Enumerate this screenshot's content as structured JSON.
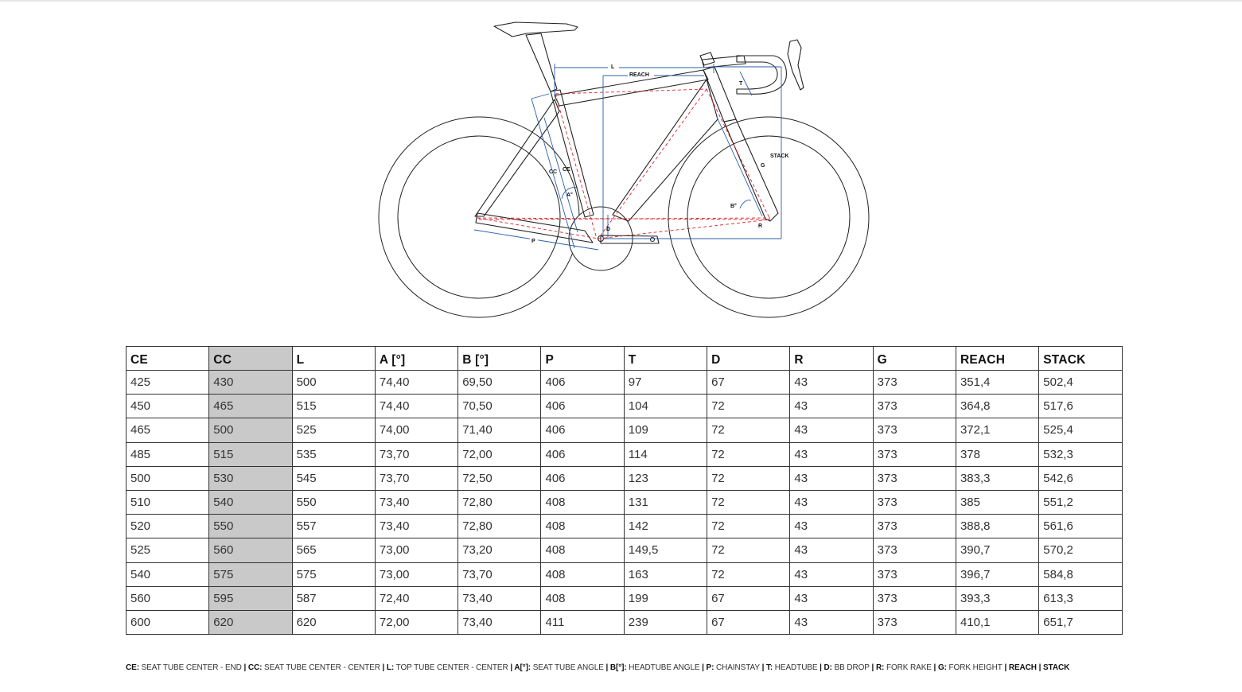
{
  "diagram": {
    "labels": {
      "l": "L",
      "reach": "REACH",
      "t": "T",
      "stack": "STACK",
      "g": "G",
      "cc": "CC",
      "ce": "CE",
      "a": "A°",
      "b": "B°",
      "d": "D",
      "r": "R",
      "p": "P"
    },
    "colors": {
      "frame": "#222222",
      "dimension": "#2b5faa",
      "centerline": "#d9252b"
    }
  },
  "table": {
    "headers": [
      "CE",
      "CC",
      "L",
      "A [°]",
      "B [°]",
      "P",
      "T",
      "D",
      "R",
      "G",
      "REACH",
      "STACK"
    ],
    "highlight_color": "#c9c9c9",
    "rows": [
      [
        "425",
        "430",
        "500",
        "74,40",
        "69,50",
        "406",
        "97",
        "67",
        "43",
        "373",
        "351,4",
        "502,4"
      ],
      [
        "450",
        "465",
        "515",
        "74,40",
        "70,50",
        "406",
        "104",
        "72",
        "43",
        "373",
        "364,8",
        "517,6"
      ],
      [
        "465",
        "500",
        "525",
        "74,00",
        "71,40",
        "406",
        "109",
        "72",
        "43",
        "373",
        "372,1",
        "525,4"
      ],
      [
        "485",
        "515",
        "535",
        "73,70",
        "72,00",
        "406",
        "114",
        "72",
        "43",
        "373",
        "378",
        "532,3"
      ],
      [
        "500",
        "530",
        "545",
        "73,70",
        "72,50",
        "406",
        "123",
        "72",
        "43",
        "373",
        "383,3",
        "542,6"
      ],
      [
        "510",
        "540",
        "550",
        "73,40",
        "72,80",
        "408",
        "131",
        "72",
        "43",
        "373",
        "385",
        "551,2"
      ],
      [
        "520",
        "550",
        "557",
        "73,40",
        "72,80",
        "408",
        "142",
        "72",
        "43",
        "373",
        "388,8",
        "561,6"
      ],
      [
        "525",
        "560",
        "565",
        "73,00",
        "73,20",
        "408",
        "149,5",
        "72",
        "43",
        "373",
        "390,7",
        "570,2"
      ],
      [
        "540",
        "575",
        "575",
        "73,00",
        "73,70",
        "408",
        "163",
        "72",
        "43",
        "373",
        "396,7",
        "584,8"
      ],
      [
        "560",
        "595",
        "587",
        "72,40",
        "73,40",
        "408",
        "199",
        "67",
        "43",
        "373",
        "393,3",
        "613,3"
      ],
      [
        "600",
        "620",
        "620",
        "72,00",
        "73,40",
        "411",
        "239",
        "67",
        "43",
        "373",
        "410,1",
        "651,7"
      ]
    ]
  },
  "legend": {
    "items": [
      {
        "key": "CE:",
        "desc": "SEAT TUBE CENTER - END"
      },
      {
        "key": "CC:",
        "desc": "SEAT TUBE CENTER - CENTER"
      },
      {
        "key": "L:",
        "desc": "TOP TUBE CENTER - CENTER"
      },
      {
        "key": "A[°]:",
        "desc": "SEAT TUBE ANGLE"
      },
      {
        "key": "B[°]:",
        "desc": "HEADTUBE ANGLE"
      },
      {
        "key": "P:",
        "desc": "CHAINSTAY"
      },
      {
        "key": "T:",
        "desc": "HEADTUBE"
      },
      {
        "key": "D:",
        "desc": "BB DROP"
      },
      {
        "key": "R:",
        "desc": "FORK RAKE"
      },
      {
        "key": "G:",
        "desc": "FORK HEIGHT"
      },
      {
        "key": "REACH",
        "desc": ""
      },
      {
        "key": "STACK",
        "desc": ""
      }
    ]
  }
}
